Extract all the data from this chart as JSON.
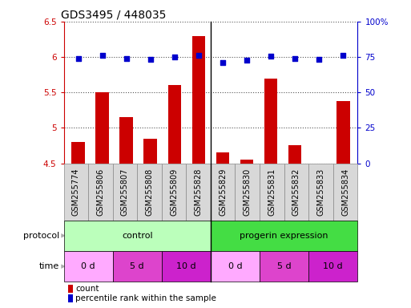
{
  "title": "GDS3495 / 448035",
  "samples": [
    "GSM255774",
    "GSM255806",
    "GSM255807",
    "GSM255808",
    "GSM255809",
    "GSM255828",
    "GSM255829",
    "GSM255830",
    "GSM255831",
    "GSM255832",
    "GSM255833",
    "GSM255834"
  ],
  "bar_values": [
    4.8,
    5.5,
    5.15,
    4.85,
    5.6,
    6.3,
    4.65,
    4.55,
    5.7,
    4.75,
    4.5,
    5.38
  ],
  "dot_values": [
    74,
    76,
    74,
    73.5,
    75,
    76,
    71,
    73,
    75.5,
    74,
    73.5,
    76
  ],
  "bar_color": "#cc0000",
  "dot_color": "#0000cc",
  "ylim_left": [
    4.5,
    6.5
  ],
  "ylim_right": [
    0,
    100
  ],
  "yticks_left": [
    4.5,
    5.0,
    5.5,
    6.0,
    6.5
  ],
  "yticks_right": [
    0,
    25,
    50,
    75,
    100
  ],
  "ytick_labels_left": [
    "4.5",
    "5",
    "5.5",
    "6",
    "6.5"
  ],
  "ytick_labels_right": [
    "0",
    "25",
    "50",
    "75",
    "100%"
  ],
  "bg_color": "#ffffff",
  "grid_color": "#555555",
  "bar_color_red": "#cc0000",
  "dot_color_blue": "#0000cc",
  "sample_box_color": "#d8d8d8",
  "sample_box_edge": "#888888",
  "proto_control_color": "#bbffbb",
  "proto_progerin_color": "#44dd44",
  "time_light_color": "#ffaaff",
  "time_mid_color": "#dd44cc",
  "time_dark_color": "#cc22cc",
  "separator_color": "#000000",
  "arrow_color": "#aaaaaa",
  "label_fontsize": 7,
  "tick_fontsize": 7.5,
  "title_fontsize": 10
}
